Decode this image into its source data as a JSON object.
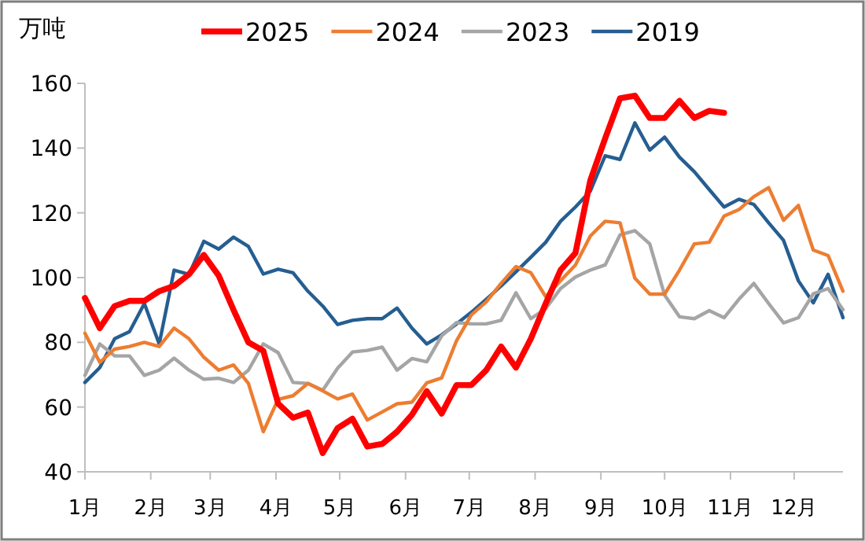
{
  "chart_data": {
    "type": "line",
    "ylabel": "万吨",
    "x": [
      "--01-01",
      "--01-08",
      "--01-15",
      "--01-22",
      "--01-29",
      "--02-05",
      "--02-12",
      "--02-19",
      "--02-26",
      "--03-05",
      "--03-12",
      "--03-19",
      "--03-26",
      "--04-02",
      "--04-09",
      "--04-16",
      "--04-23",
      "--04-30",
      "--05-07",
      "--05-14",
      "--05-21",
      "--05-28",
      "--06-04",
      "--06-11",
      "--06-18",
      "--06-25",
      "--07-02",
      "--07-09",
      "--07-16",
      "--07-23",
      "--07-30",
      "--08-06",
      "--08-13",
      "--08-20",
      "--08-27",
      "--09-03",
      "--09-10",
      "--09-17",
      "--09-24",
      "--10-01",
      "--10-08",
      "--10-15",
      "--10-22",
      "--10-29",
      "--11-05",
      "--11-12",
      "--11-19",
      "--11-26",
      "--12-03",
      "--12-10",
      "--12-17",
      "--12-24"
    ],
    "xlim": [
      "--01-01",
      "--12-24"
    ],
    "xticks": [
      {
        "value": "--01-01",
        "label": "1月"
      },
      {
        "value": "--02-01",
        "label": "2月"
      },
      {
        "value": "--03-01",
        "label": "3月"
      },
      {
        "value": "--04-01",
        "label": "4月"
      },
      {
        "value": "--05-01",
        "label": "5月"
      },
      {
        "value": "--06-01",
        "label": "6月"
      },
      {
        "value": "--07-01",
        "label": "7月"
      },
      {
        "value": "--08-01",
        "label": "8月"
      },
      {
        "value": "--09-01",
        "label": "9月"
      },
      {
        "value": "--10-01",
        "label": "10月"
      },
      {
        "value": "--11-01",
        "label": "11月"
      },
      {
        "value": "--12-01",
        "label": "12月"
      }
    ],
    "ylim": [
      40,
      160
    ],
    "yticks": [
      40,
      60,
      80,
      100,
      120,
      140,
      160
    ],
    "legend": "top",
    "grid": false,
    "marker": "none",
    "line_style": "solid",
    "series": [
      {
        "name": "2025",
        "color": "#ff0000",
        "values": [
          93.7,
          84.4,
          91.2,
          92.8,
          92.8,
          95.8,
          97.4,
          101,
          107,
          100.6,
          90,
          80,
          77.4,
          61.1,
          56.7,
          58.3,
          45.8,
          53.5,
          56.4,
          47.8,
          48.6,
          52.4,
          57.6,
          64.9,
          58,
          66.8,
          66.8,
          71.4,
          78.7,
          72.2,
          81.1,
          92,
          102.3,
          107.6,
          130,
          143,
          155.4,
          156.2,
          149.3,
          149.3,
          154.6,
          149.3,
          151.5,
          150.9,
          null,
          null,
          null,
          null,
          null,
          null,
          null,
          null
        ]
      },
      {
        "name": "2024",
        "color": "#ed7d31",
        "values": [
          82.8,
          73.8,
          77.9,
          78.7,
          80,
          78.7,
          84.4,
          81.1,
          75.4,
          71.4,
          73,
          67.3,
          52.4,
          62.4,
          63.5,
          67.3,
          65,
          62.5,
          64,
          56,
          58.5,
          61,
          61.5,
          67.5,
          69,
          80.5,
          88.5,
          92.5,
          98.2,
          103.4,
          101.5,
          94.1,
          99,
          103.9,
          112.8,
          117.4,
          116.9,
          99.8,
          94.9,
          94.9,
          102.3,
          110.4,
          110.9,
          119,
          121,
          125,
          127.8,
          117.7,
          122.3,
          108.5,
          106.8,
          95.8
        ]
      },
      {
        "name": "2023",
        "color": "#a5a5a5",
        "values": [
          69.8,
          79.5,
          75.8,
          75.8,
          69.8,
          71.4,
          75.1,
          71.4,
          68.6,
          68.9,
          67.6,
          71.4,
          79.5,
          76.8,
          67.6,
          67.3,
          65.2,
          72,
          77,
          77.5,
          78.5,
          71.4,
          75,
          74,
          82,
          86.1,
          85.7,
          85.7,
          86.8,
          95.3,
          87.3,
          90.4,
          96.6,
          100.2,
          102.3,
          103.9,
          113.2,
          114.5,
          110.4,
          94.6,
          87.9,
          87.3,
          89.8,
          87.6,
          93.3,
          98.2,
          92,
          86,
          87.6,
          95,
          96.6,
          90.1
        ]
      },
      {
        "name": "2019",
        "color": "#255e91",
        "values": [
          67.6,
          72.2,
          81.1,
          83.3,
          92,
          79.5,
          102.3,
          101,
          111.2,
          108.8,
          112.5,
          109.6,
          101.1,
          102.6,
          101.5,
          95.8,
          91.2,
          85.5,
          86.8,
          87.3,
          87.3,
          90.6,
          84.4,
          79.5,
          82.3,
          85.7,
          89.3,
          93.3,
          97.4,
          101.8,
          106.3,
          110.9,
          117.4,
          121.8,
          126.7,
          137.6,
          136.5,
          147.8,
          139.4,
          143.4,
          137.2,
          132.7,
          127.2,
          121.8,
          124.2,
          122.6,
          116.9,
          111.5,
          99,
          92.2,
          101,
          87.6
        ]
      }
    ]
  }
}
